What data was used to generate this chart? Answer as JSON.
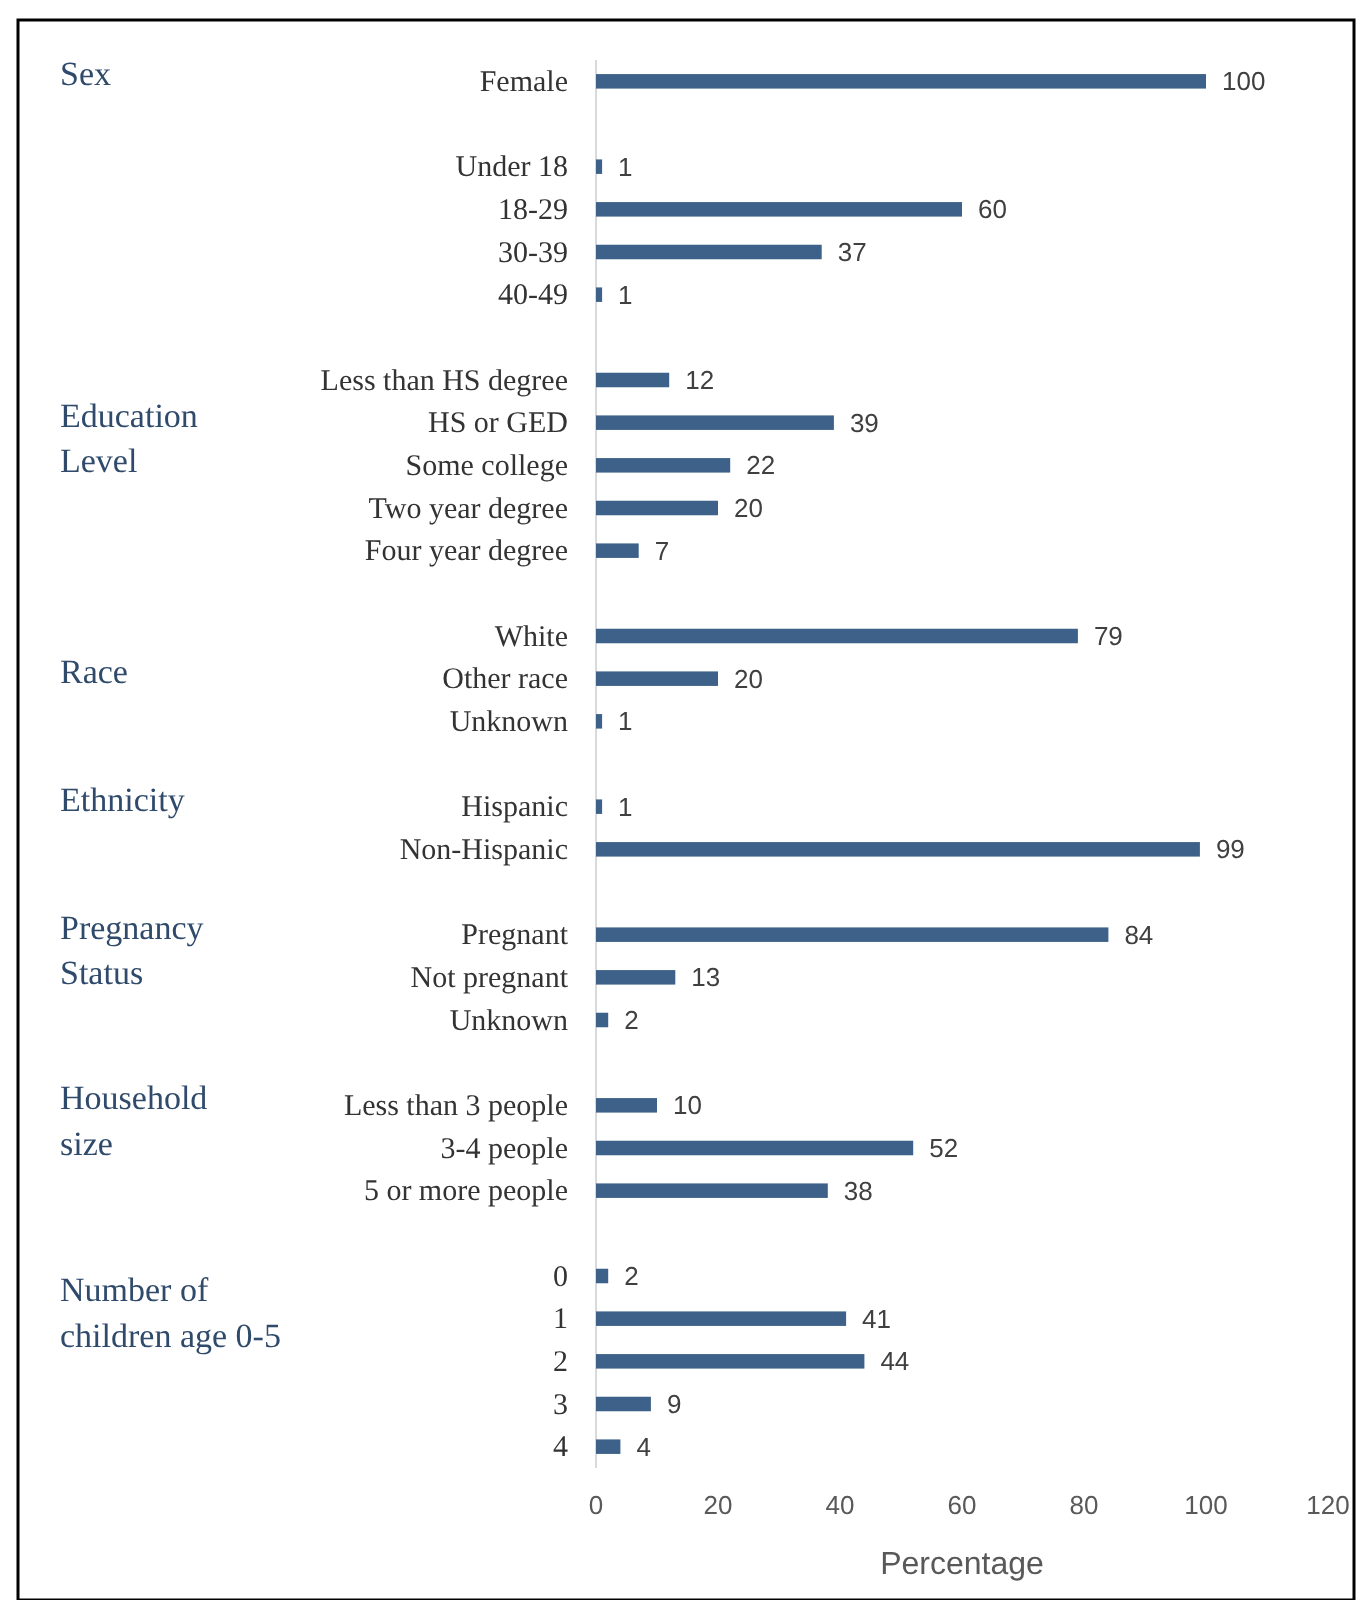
{
  "chart_data": {
    "type": "bar",
    "orientation": "horizontal",
    "xlabel": "Percentage",
    "categories": [
      "Female",
      null,
      "Under 18",
      "18-29",
      "30-39",
      "40-49",
      null,
      "Less than HS degree",
      "HS or GED",
      "Some college",
      "Two year degree",
      "Four year degree",
      null,
      "White",
      "Other race",
      "Unknown",
      null,
      "Hispanic",
      "Non-Hispanic",
      null,
      "Pregnant",
      "Not pregnant",
      "Unknown",
      null,
      "Less than 3 people",
      "3-4 people",
      "5 or more people",
      null,
      "0",
      "1",
      "2",
      "3",
      "4"
    ],
    "values": [
      100,
      null,
      1,
      60,
      37,
      1,
      null,
      12,
      39,
      22,
      20,
      7,
      null,
      79,
      20,
      1,
      null,
      1,
      99,
      null,
      84,
      13,
      2,
      null,
      10,
      52,
      38,
      null,
      2,
      41,
      44,
      9,
      4
    ],
    "color": "#3d6189",
    "data_labels": true,
    "xlim": [
      0,
      120
    ],
    "xticks": [
      0,
      20,
      40,
      60,
      80,
      100,
      120
    ],
    "grid": false,
    "annotations": [
      "Sex",
      "Education Level",
      "Race",
      "Ethnicity",
      "Pregnancy Status",
      "Household size",
      "Number of children age 0-5"
    ]
  }
}
